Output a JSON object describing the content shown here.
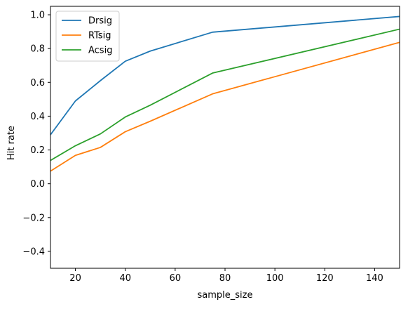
{
  "chart_data": {
    "type": "line",
    "title": "",
    "xlabel": "sample_size",
    "ylabel": "Hit rate",
    "xlim": [
      10,
      150
    ],
    "ylim": [
      -0.5,
      1.05
    ],
    "x_ticks": [
      20,
      40,
      60,
      80,
      100,
      120,
      140
    ],
    "y_ticks": [
      -0.4,
      -0.2,
      0.0,
      0.2,
      0.4,
      0.6,
      0.8,
      1.0
    ],
    "x_tick_labels": [
      "20",
      "40",
      "60",
      "80",
      "100",
      "120",
      "140"
    ],
    "y_tick_labels": [
      "−0.4",
      "−0.2",
      "0.0",
      "0.2",
      "0.4",
      "0.6",
      "0.8",
      "1.0"
    ],
    "grid": false,
    "legend_position": "top-left",
    "x": [
      10,
      20,
      30,
      40,
      50,
      75,
      150
    ],
    "series": [
      {
        "name": "Drsig",
        "color": "#1f77b4",
        "values": [
          0.29,
          0.49,
          0.61,
          0.725,
          0.785,
          0.897,
          0.99
        ]
      },
      {
        "name": "RTsig",
        "color": "#ff7f0e",
        "values": [
          0.075,
          0.168,
          0.215,
          0.308,
          0.37,
          0.532,
          0.837
        ]
      },
      {
        "name": "Acsig",
        "color": "#2ca02c",
        "values": [
          0.138,
          0.225,
          0.295,
          0.395,
          0.465,
          0.655,
          0.915
        ]
      }
    ]
  }
}
